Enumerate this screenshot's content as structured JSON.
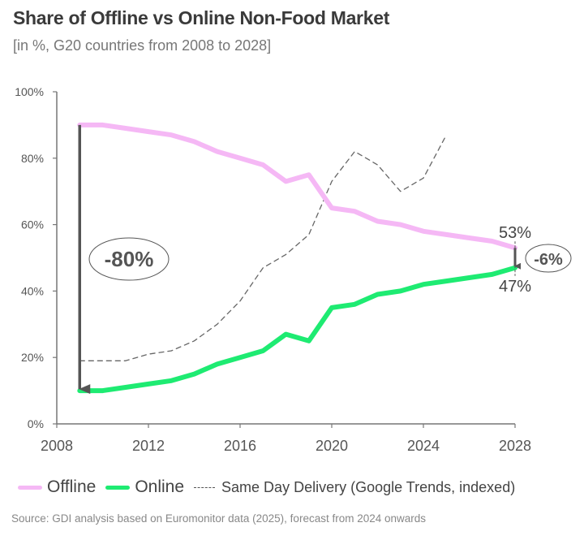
{
  "chart_data": {
    "type": "line",
    "title": "Share of Offline vs Online Non-Food Market",
    "subtitle": "[in %, G20 countries from 2008 to 2028]",
    "xlabel": "",
    "ylabel": "",
    "xlim": [
      2008,
      2028
    ],
    "ylim": [
      0,
      100
    ],
    "x_ticks": [
      2008,
      2012,
      2016,
      2020,
      2024,
      2028
    ],
    "y_ticks": [
      0,
      20,
      40,
      60,
      80,
      100
    ],
    "y_tick_labels": [
      "0%",
      "20%",
      "40%",
      "60%",
      "80%",
      "100%"
    ],
    "grid": false,
    "legend_position": "bottom",
    "series": [
      {
        "name": "Offline",
        "color": "#f5b8f5",
        "style": "solid",
        "x": [
          2009,
          2010,
          2011,
          2012,
          2013,
          2014,
          2015,
          2016,
          2017,
          2018,
          2019,
          2020,
          2021,
          2022,
          2023,
          2024,
          2025,
          2026,
          2027,
          2028
        ],
        "values": [
          90,
          90,
          89,
          88,
          87,
          85,
          82,
          80,
          78,
          73,
          75,
          65,
          64,
          61,
          60,
          58,
          57,
          56,
          55,
          53
        ]
      },
      {
        "name": "Online",
        "color": "#1eeb72",
        "style": "solid",
        "x": [
          2009,
          2010,
          2011,
          2012,
          2013,
          2014,
          2015,
          2016,
          2017,
          2018,
          2019,
          2020,
          2021,
          2022,
          2023,
          2024,
          2025,
          2026,
          2027,
          2028
        ],
        "values": [
          10,
          10,
          11,
          12,
          13,
          15,
          18,
          20,
          22,
          27,
          25,
          35,
          36,
          39,
          40,
          42,
          43,
          44,
          45,
          47
        ]
      },
      {
        "name": "Same Day Delivery (Google Trends, indexed)",
        "color": "#666666",
        "style": "dashed",
        "x": [
          2009,
          2010,
          2011,
          2012,
          2013,
          2014,
          2015,
          2016,
          2017,
          2018,
          2019,
          2020,
          2021,
          2022,
          2023,
          2024,
          2025
        ],
        "values": [
          19,
          19,
          19,
          21,
          22,
          25,
          30,
          37,
          47,
          51,
          57,
          73,
          82,
          78,
          70,
          74,
          87
        ]
      }
    ],
    "annotations": [
      {
        "name": "gap-2009",
        "text": "-80%",
        "x": 2009,
        "from": 90,
        "to": 10
      },
      {
        "name": "gap-2028",
        "text": "-6%",
        "x": 2028,
        "from": 53,
        "to": 47
      },
      {
        "name": "offline-end-label",
        "text": "53%",
        "x": 2028,
        "y": 53
      },
      {
        "name": "online-end-label",
        "text": "47%",
        "x": 2028,
        "y": 47
      }
    ],
    "source": "Source: GDI analysis based on Euromonitor data (2025), forecast from 2024 onwards"
  },
  "legend": {
    "offline": "Offline",
    "online": "Online",
    "same_day": "Same Day Delivery (Google Trends, indexed)"
  }
}
